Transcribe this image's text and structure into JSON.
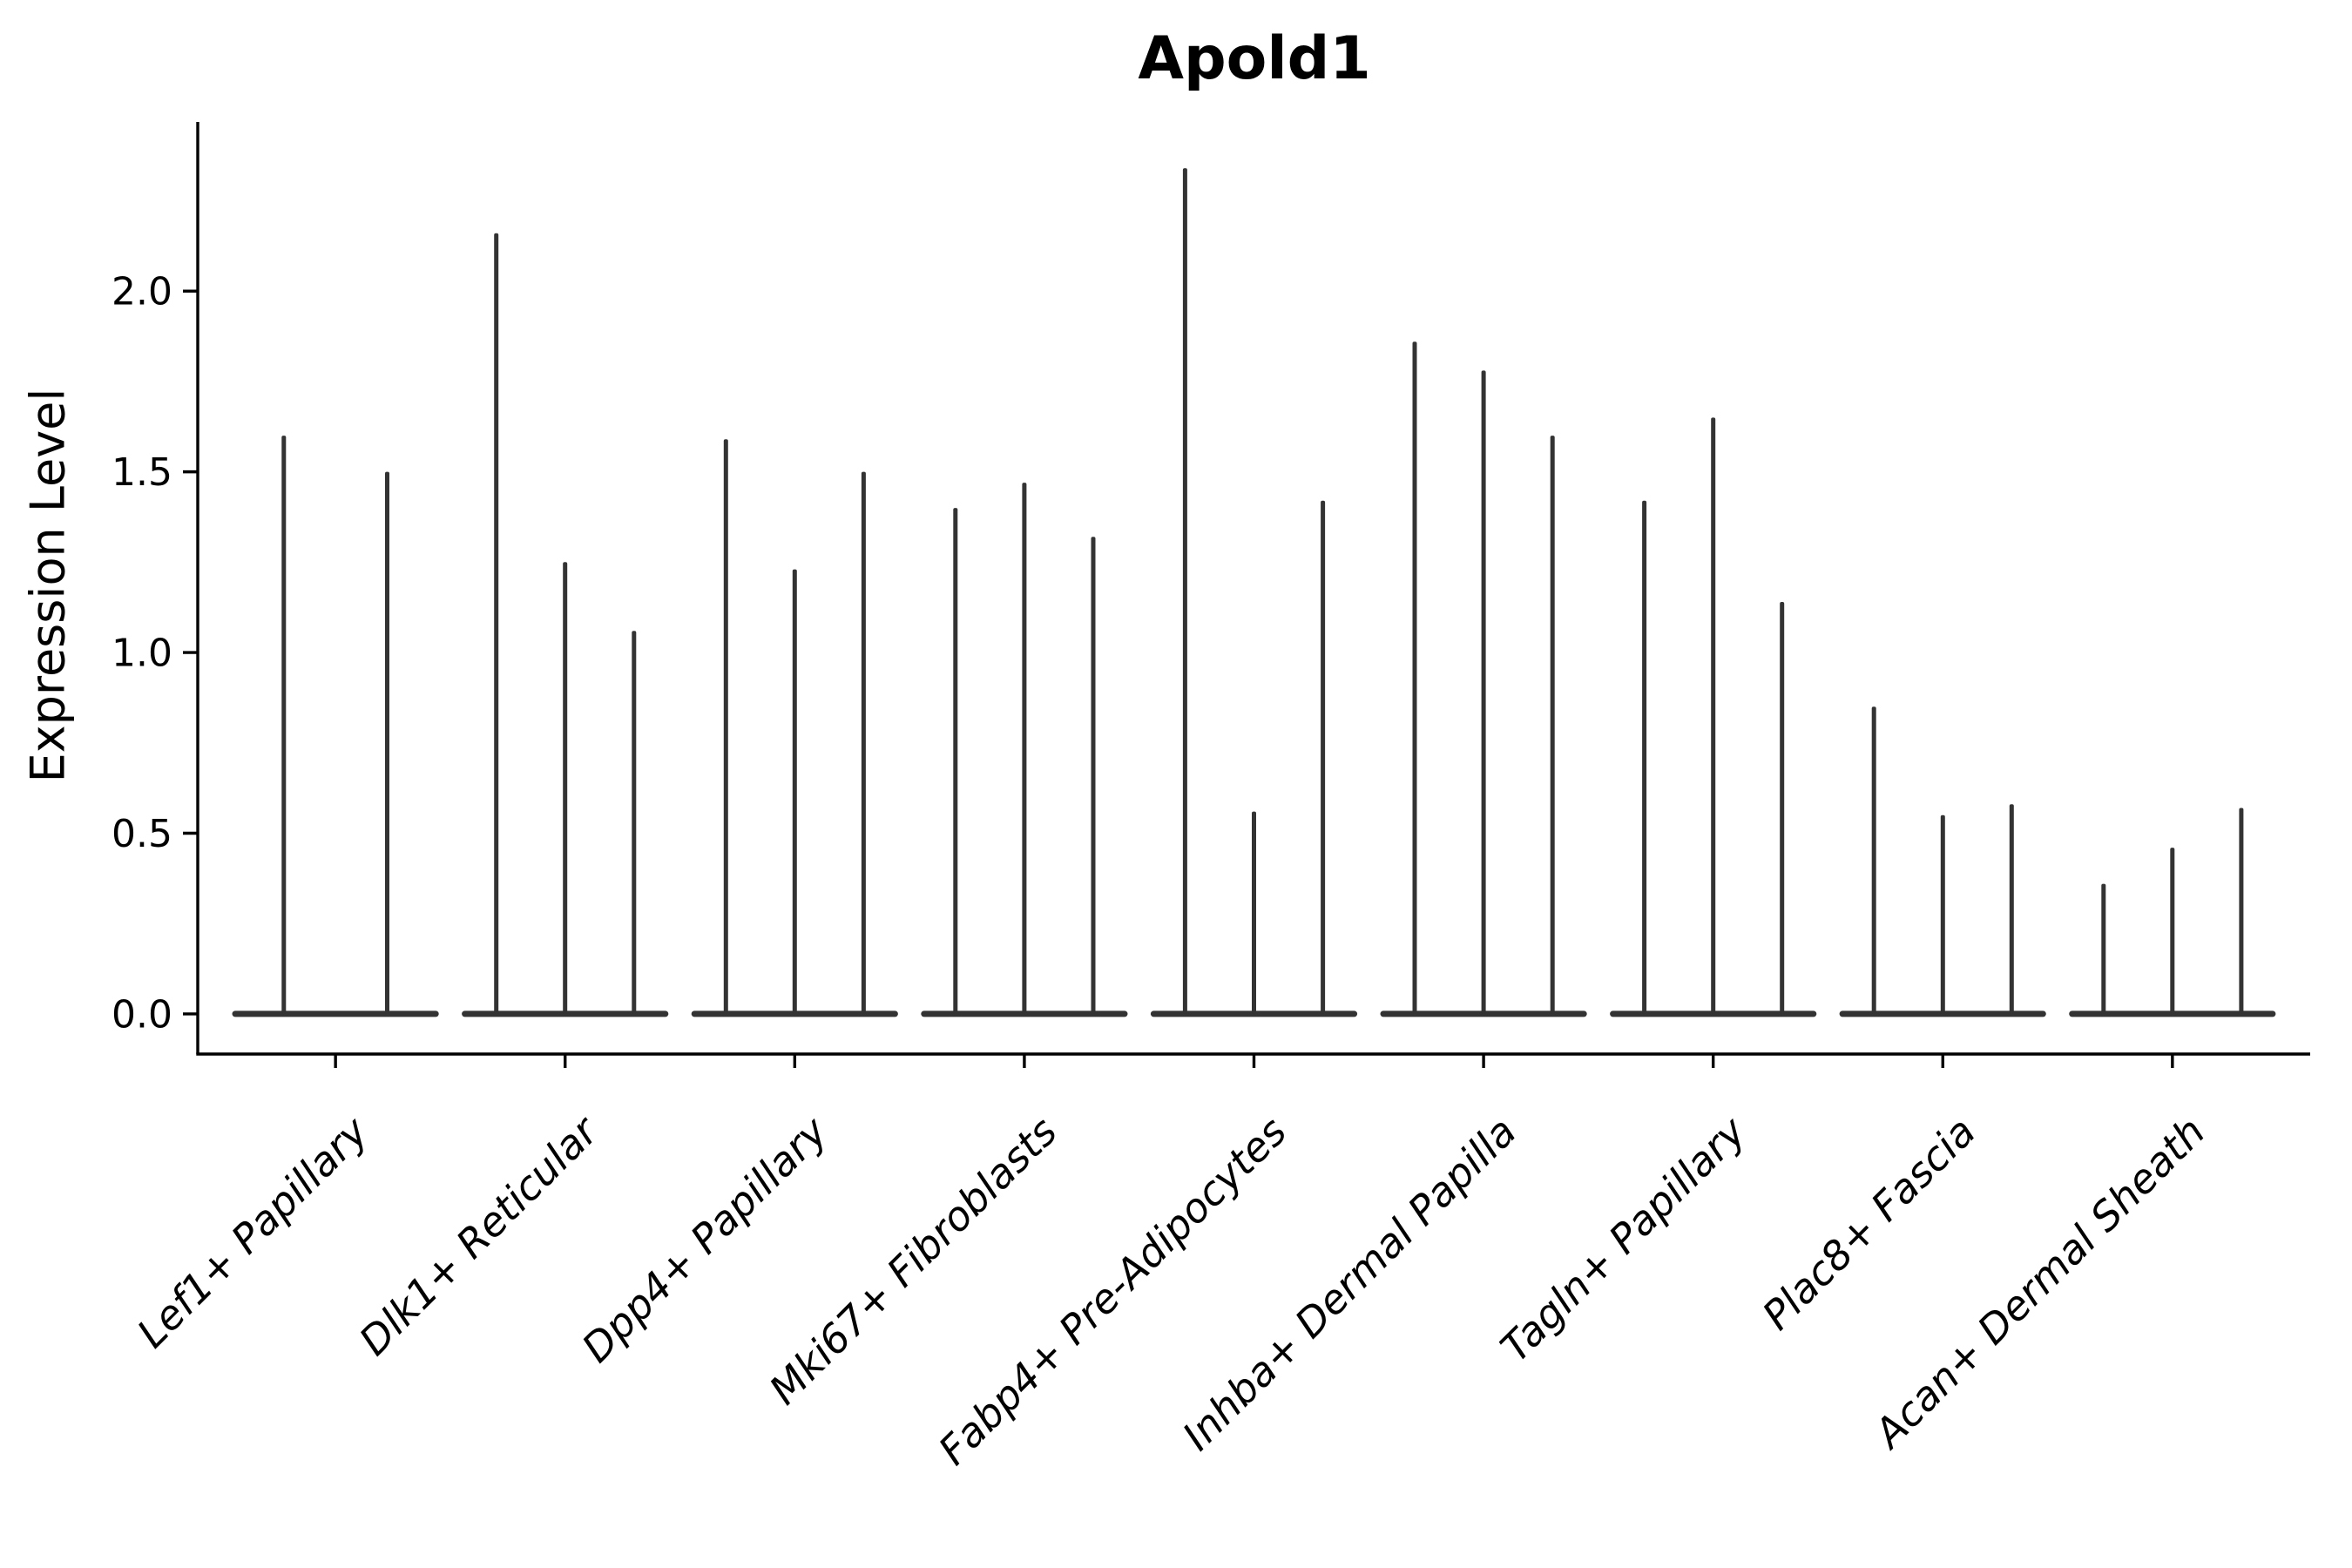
{
  "chart_data": {
    "type": "violin",
    "title": "Apold1",
    "ylabel": "Expression Level",
    "xlabel": "",
    "ytick_labels": [
      "0.0",
      "0.5",
      "1.0",
      "1.5",
      "2.0"
    ],
    "ytick_values": [
      0.0,
      0.5,
      1.0,
      1.5,
      2.0
    ],
    "ylim": [
      -0.111,
      2.468
    ],
    "categories": [
      "Lef1+ Papillary",
      "Dlk1+ Reticular",
      "Dpp4+ Papillary",
      "Mki67+ Fibroblasts",
      "Fabp4+ Pre-Adipocytes",
      "Inhba+ Dermal Papilla",
      "Tagln+ Papillary",
      "Plac8+ Fascia",
      "Acan+ Dermal Sheath"
    ],
    "violin_max_values": [
      [
        1.6,
        1.5
      ],
      [
        2.16,
        1.25,
        1.06
      ],
      [
        1.59,
        1.23,
        1.5
      ],
      [
        1.4,
        1.47,
        1.32
      ],
      [
        2.34,
        0.56,
        1.42
      ],
      [
        1.86,
        1.78,
        1.6
      ],
      [
        1.42,
        1.65,
        1.14
      ],
      [
        0.85,
        0.55,
        0.58
      ],
      [
        0.36,
        0.46,
        0.57
      ]
    ],
    "baseline_value": 0,
    "group_width": 0.9,
    "grid": false,
    "legend": null,
    "colors": {
      "violin": "#333333",
      "axis": "#000000",
      "text": "#000000",
      "background": "#ffffff"
    }
  }
}
